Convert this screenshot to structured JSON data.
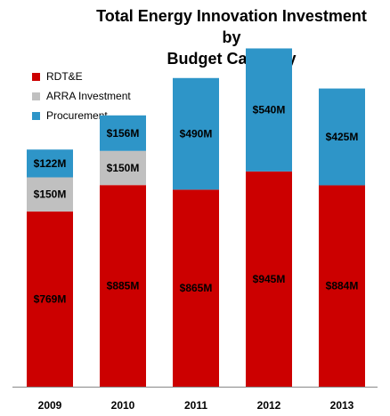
{
  "chart_data": {
    "type": "bar",
    "stacked": true,
    "title": "Total Energy Innovation Investment by Budget Category",
    "title_lines": [
      "Total Energy Innovation Investment by",
      "Budget Category"
    ],
    "categories": [
      "2009",
      "2010",
      "2011",
      "2012",
      "2013"
    ],
    "series": [
      {
        "name": "RDT&E",
        "color": "#cc0000",
        "values": [
          769,
          885,
          865,
          945,
          884
        ],
        "labels": [
          "$769M",
          "$885M",
          "$865M",
          "$945M",
          "$884M"
        ]
      },
      {
        "name": "ARRA Investment",
        "color": "#c0c0c0",
        "values": [
          150,
          150,
          0,
          0,
          0
        ],
        "labels": [
          "$150M",
          "$150M",
          "",
          "",
          ""
        ]
      },
      {
        "name": "Procurement",
        "color": "#2e95c8",
        "values": [
          122,
          156,
          490,
          540,
          425
        ],
        "labels": [
          "$122M",
          "$156M",
          "$490M",
          "$540M",
          "$425M"
        ]
      }
    ],
    "xlabel": "",
    "ylabel": "",
    "ylim": [
      0,
      1600
    ],
    "grid": false,
    "legend_position": "top-left"
  }
}
